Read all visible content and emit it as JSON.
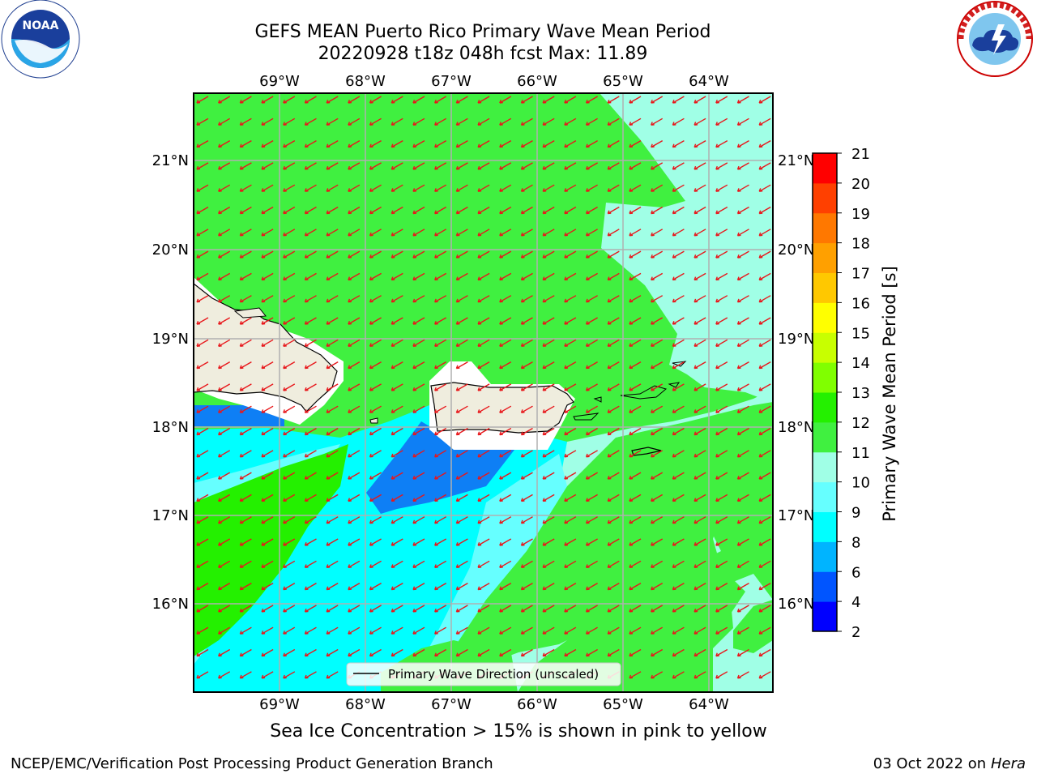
{
  "header": {
    "title": "GEFS MEAN Puerto Rico Primary Wave Mean Period",
    "subtitle": "20220928 t18z 048h fcst   Max: 11.89"
  },
  "logos": {
    "left": "NOAA",
    "right": "NATIONAL WEATHER SERVICE"
  },
  "map": {
    "lon_labels": [
      "69°W",
      "68°W",
      "67°W",
      "66°W",
      "65°W",
      "64°W"
    ],
    "lat_labels": [
      "21°N",
      "20°N",
      "19°N",
      "18°N",
      "17°N",
      "16°N"
    ],
    "legend_label": "Primary Wave Direction (unscaled)",
    "arrow_color": "#e8171b",
    "land_color": "#efedde"
  },
  "colorbar": {
    "label": "Primary Wave Mean Period [s]",
    "ticks": [
      "2",
      "4",
      "6",
      "8",
      "9",
      "10",
      "11",
      "12",
      "13",
      "14",
      "15",
      "16",
      "17",
      "18",
      "19",
      "20",
      "21"
    ],
    "colors": [
      "#0000ff",
      "#0055ff",
      "#00b4ff",
      "#00ffff",
      "#66ffff",
      "#a0ffe6",
      "#40f040",
      "#24f000",
      "#80ff00",
      "#c8ff00",
      "#ffff00",
      "#ffc800",
      "#ffa000",
      "#ff7800",
      "#ff4000",
      "#ff0000"
    ]
  },
  "caption": "Sea Ice Concentration > 15% is shown in pink to yellow",
  "footer": {
    "left": "NCEP/EMC/Verification Post Processing Product Generation Branch",
    "right_date": "03 Oct 2022 on",
    "right_host": "Hera"
  }
}
